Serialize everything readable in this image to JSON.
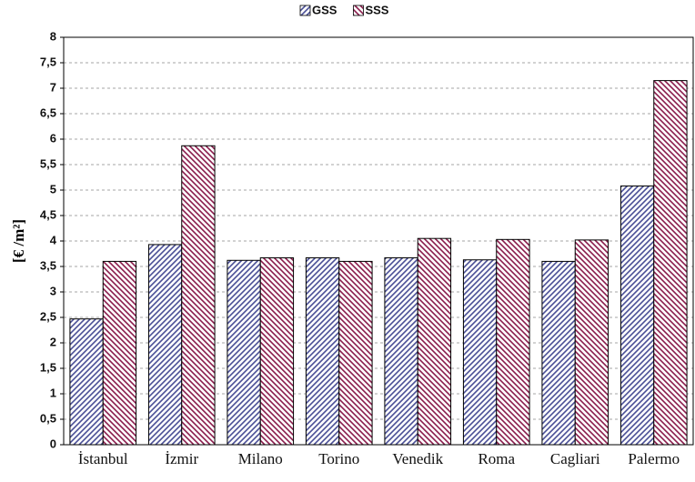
{
  "chart_data": {
    "type": "bar",
    "y_label": "[€ /m²]",
    "categories": [
      "İstanbul",
      "İzmir",
      "Milano",
      "Torino",
      "Venedik",
      "Roma",
      "Cagliari",
      "Palermo"
    ],
    "series": [
      {
        "name": "GSS",
        "color": "#4a4f96",
        "hatch": "/",
        "values": [
          2.47,
          3.93,
          3.62,
          3.67,
          3.67,
          3.63,
          3.6,
          5.08
        ]
      },
      {
        "name": "SSS",
        "color": "#8a1c4c",
        "hatch": "\\",
        "values": [
          3.6,
          5.87,
          3.67,
          3.6,
          4.05,
          4.03,
          4.02,
          7.15
        ]
      }
    ],
    "ylim": [
      0,
      8
    ],
    "yticks": [
      0,
      {
        "value": 0.5,
        "label": "0,5"
      },
      1,
      {
        "value": 1.5,
        "label": "1,5"
      },
      2,
      {
        "value": 2.5,
        "label": "2,5"
      },
      3,
      {
        "value": 3.5,
        "label": "3,5"
      },
      4,
      {
        "value": 4.5,
        "label": "4,5"
      },
      5,
      {
        "value": 5.5,
        "label": "5,5"
      },
      6,
      {
        "value": 6.5,
        "label": "6,5"
      },
      7,
      {
        "value": 7.5,
        "label": "7,5"
      },
      8
    ],
    "grid": true,
    "legend": "top"
  }
}
